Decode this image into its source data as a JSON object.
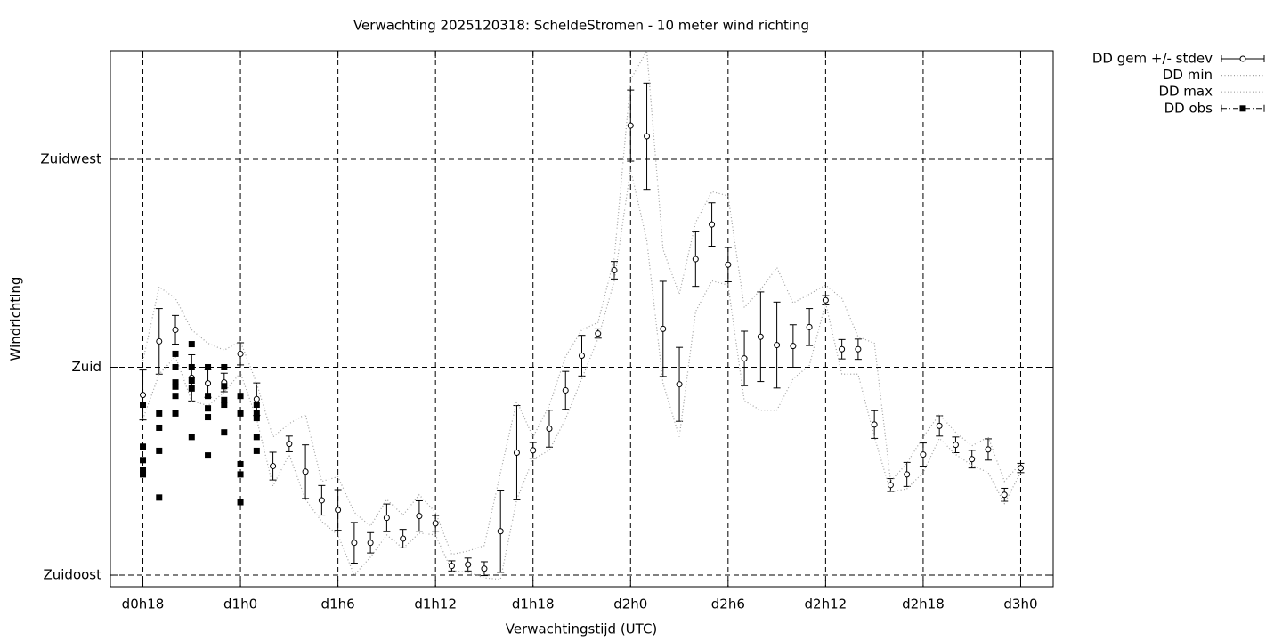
{
  "chart_data": {
    "type": "errorbar",
    "title": "Verwachting 2025120318: ScheldeStromen - 10 meter wind richting",
    "xlabel": "Verwachtingstijd (UTC)",
    "ylabel": "Windrichting",
    "xlim": [
      16,
      74
    ],
    "ylim": [
      132.5,
      248.5
    ],
    "xticks": [
      {
        "value": 18,
        "label": "d0h18"
      },
      {
        "value": 24,
        "label": "d1h0"
      },
      {
        "value": 30,
        "label": "d1h6"
      },
      {
        "value": 36,
        "label": "d1h12"
      },
      {
        "value": 42,
        "label": "d1h18"
      },
      {
        "value": 48,
        "label": "d2h0"
      },
      {
        "value": 54,
        "label": "d2h6"
      },
      {
        "value": 60,
        "label": "d2h12"
      },
      {
        "value": 66,
        "label": "d2h18"
      },
      {
        "value": 72,
        "label": "d3h0"
      }
    ],
    "yticks": [
      {
        "value": 135,
        "label": "Zuidoost"
      },
      {
        "value": 180,
        "label": "Zuid"
      },
      {
        "value": 225,
        "label": "Zuidwest"
      }
    ],
    "grid": true,
    "legend": "outside-top-right",
    "x": [
      18,
      19,
      20,
      21,
      22,
      23,
      24,
      25,
      26,
      27,
      28,
      29,
      30,
      31,
      32,
      33,
      34,
      35,
      36,
      37,
      38,
      39,
      40,
      41,
      42,
      43,
      44,
      45,
      46,
      47,
      48,
      49,
      50,
      51,
      52,
      53,
      54,
      55,
      56,
      57,
      58,
      59,
      60,
      61,
      62,
      63,
      64,
      65,
      66,
      67,
      68,
      69,
      70,
      71,
      72
    ],
    "series": [
      {
        "name": "DD gem +/- stdev",
        "color": "#000000",
        "style": "errorbar",
        "values": [
          174.0,
          185.6,
          188.1,
          177.7,
          176.5,
          176.7,
          182.9,
          173.1,
          158.6,
          163.4,
          157.4,
          151.2,
          149.1,
          142.0,
          142.0,
          147.4,
          142.9,
          147.8,
          146.2,
          137.0,
          137.3,
          136.4,
          144.5,
          161.5,
          162.0,
          166.7,
          175.0,
          182.5,
          187.3,
          201.0,
          232.3,
          230.0,
          188.3,
          176.3,
          203.4,
          210.9,
          202.2,
          181.9,
          186.6,
          184.8,
          184.6,
          188.7,
          194.5,
          183.9,
          183.9,
          167.6,
          154.5,
          156.8,
          161.1,
          167.3,
          163.2,
          160.1,
          162.2,
          152.4,
          158.2
        ],
        "errors": [
          5.4,
          7.1,
          3.1,
          5.0,
          3.0,
          2.0,
          2.4,
          3.5,
          3.0,
          1.7,
          5.8,
          3.2,
          4.4,
          4.4,
          2.2,
          3.0,
          2.0,
          3.3,
          1.7,
          1.1,
          1.4,
          1.5,
          8.9,
          10.2,
          1.7,
          4.0,
          4.1,
          4.4,
          1.0,
          1.9,
          7.7,
          11.5,
          10.3,
          8.0,
          5.9,
          4.7,
          3.7,
          5.9,
          9.7,
          9.3,
          4.6,
          4.0,
          1.0,
          2.1,
          2.2,
          3.0,
          1.4,
          2.6,
          2.5,
          2.2,
          1.7,
          1.9,
          2.3,
          1.4,
          1.0
        ]
      },
      {
        "name": "DD min",
        "color": "#a0a0a0",
        "style": "dotted",
        "values": [
          168.8,
          178.5,
          182.3,
          172.7,
          171.7,
          174.6,
          178.8,
          168.8,
          154.3,
          161.1,
          151.4,
          146.6,
          143.7,
          135.0,
          138.9,
          143.7,
          140.8,
          144.1,
          143.7,
          136.0,
          135.6,
          134.4,
          134.1,
          151.4,
          160.1,
          162.0,
          168.8,
          177.5,
          186.2,
          198.7,
          222.9,
          207.4,
          176.5,
          164.9,
          192.0,
          198.7,
          197.8,
          172.7,
          170.7,
          170.7,
          177.5,
          180.4,
          193.9,
          178.5,
          178.5,
          164.9,
          153.0,
          153.7,
          157.2,
          164.6,
          161.1,
          158.8,
          157.2,
          150.5,
          157.2
        ]
      },
      {
        "name": "DD max",
        "color": "#a0a0a0",
        "style": "dotted",
        "values": [
          181.4,
          197.4,
          194.9,
          188.1,
          185.2,
          183.7,
          185.6,
          176.5,
          164.9,
          167.8,
          169.8,
          155.3,
          156.3,
          148.6,
          145.6,
          151.4,
          148.0,
          152.4,
          148.6,
          139.5,
          140.2,
          141.4,
          157.2,
          172.7,
          164.9,
          171.7,
          182.3,
          188.1,
          189.7,
          203.6,
          242.2,
          248.5,
          205.5,
          195.8,
          211.3,
          218.0,
          217.1,
          192.9,
          196.8,
          201.6,
          193.9,
          195.8,
          197.8,
          194.9,
          186.6,
          185.2,
          155.3,
          159.2,
          164.9,
          169.8,
          165.9,
          163.0,
          164.9,
          155.3,
          159.2
        ]
      },
      {
        "name": "DD obs",
        "color": "#000000",
        "style": "squares",
        "x": [
          18,
          18,
          18,
          18,
          18,
          19,
          19,
          19,
          19,
          20,
          20,
          20,
          20,
          20,
          20,
          21,
          21,
          21,
          21,
          21,
          22,
          22,
          22,
          22,
          22,
          23,
          23,
          23,
          23,
          23,
          24,
          24,
          24,
          24,
          24,
          25,
          25,
          25,
          25,
          25
        ],
        "values": [
          171.9,
          162.8,
          159.9,
          157.8,
          156.8,
          170.0,
          166.9,
          161.9,
          151.8,
          182.9,
          180.0,
          176.7,
          175.8,
          173.8,
          170.0,
          185.0,
          180.0,
          177.1,
          175.4,
          164.9,
          180.0,
          173.8,
          171.1,
          169.2,
          160.9,
          180.0,
          175.9,
          172.9,
          171.9,
          165.9,
          173.8,
          170.0,
          159.0,
          156.8,
          150.8,
          171.9,
          170.0,
          169.0,
          164.9,
          161.9
        ]
      }
    ]
  }
}
